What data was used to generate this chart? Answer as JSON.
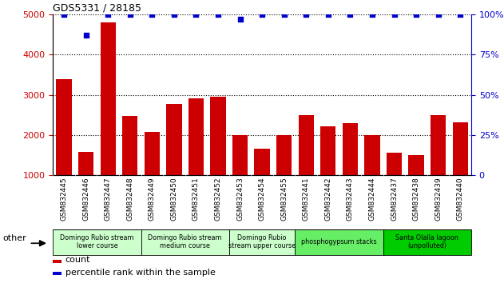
{
  "title": "GDS5331 / 28185",
  "samples": [
    "GSM832445",
    "GSM832446",
    "GSM832447",
    "GSM832448",
    "GSM832449",
    "GSM832450",
    "GSM832451",
    "GSM832452",
    "GSM832453",
    "GSM832454",
    "GSM832455",
    "GSM832441",
    "GSM832442",
    "GSM832443",
    "GSM832444",
    "GSM832437",
    "GSM832438",
    "GSM832439",
    "GSM832440"
  ],
  "counts": [
    3380,
    1580,
    4800,
    2470,
    2080,
    2780,
    2910,
    2960,
    2000,
    1660,
    2010,
    2490,
    2210,
    2300,
    2010,
    1570,
    1510,
    2500,
    2320
  ],
  "percentiles": [
    100,
    87,
    100,
    100,
    100,
    100,
    100,
    100,
    97,
    100,
    100,
    100,
    100,
    100,
    100,
    100,
    100,
    100,
    100
  ],
  "bar_color": "#cc0000",
  "dot_color": "#0000cc",
  "ylim_left": [
    1000,
    5000
  ],
  "ylim_right": [
    0,
    100
  ],
  "yticks_left": [
    1000,
    2000,
    3000,
    4000,
    5000
  ],
  "yticks_right": [
    0,
    25,
    50,
    75,
    100
  ],
  "groups": [
    {
      "label": "Domingo Rubio stream\nlower course",
      "start": 0,
      "end": 3,
      "color": "#ccffcc"
    },
    {
      "label": "Domingo Rubio stream\nmedium course",
      "start": 4,
      "end": 7,
      "color": "#ccffcc"
    },
    {
      "label": "Domingo Rubio\nstream upper course",
      "start": 8,
      "end": 10,
      "color": "#ccffcc"
    },
    {
      "label": "phosphogypsum stacks",
      "start": 11,
      "end": 14,
      "color": "#66ee66"
    },
    {
      "label": "Santa Olalla lagoon\n(unpolluted)",
      "start": 15,
      "end": 18,
      "color": "#00cc00"
    }
  ],
  "other_label": "other",
  "legend_count_label": "count",
  "legend_pct_label": "percentile rank within the sample",
  "tick_label_bg": "#d8d8d8"
}
